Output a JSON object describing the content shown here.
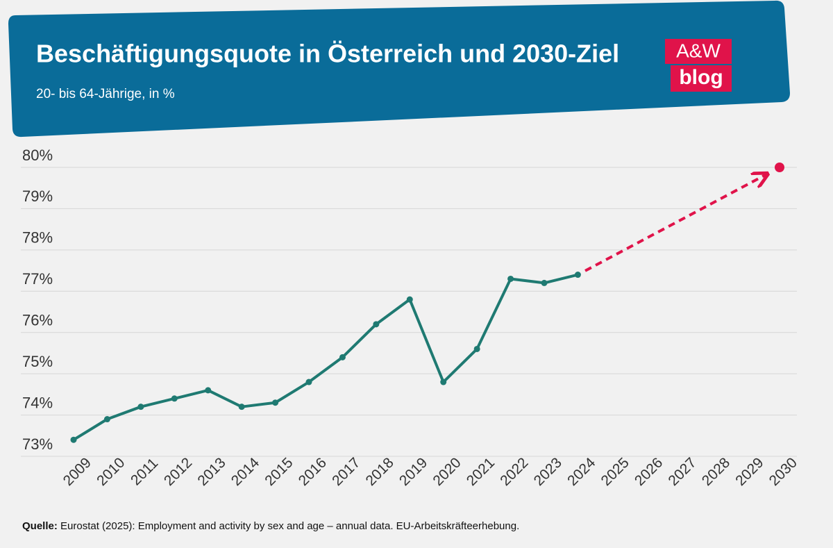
{
  "chart_data": {
    "type": "line",
    "title": "Beschäftigungsquote in Österreich und 2030-Ziel",
    "subtitle": "20- bis 64-Jährige, in %",
    "logo": [
      "A&W",
      "blog"
    ],
    "source_label": "Quelle:",
    "source": "Eurostat (2025): Employment and activity by sex and age – annual data. EU-Arbeitskräfteerhebung.",
    "categories": [
      "2009",
      "2010",
      "2011",
      "2012",
      "2013",
      "2014",
      "2015",
      "2016",
      "2017",
      "2018",
      "2019",
      "2020",
      "2021",
      "2022",
      "2023",
      "2024",
      "2025",
      "2026",
      "2027",
      "2028",
      "2029",
      "2030"
    ],
    "series": [
      {
        "color": "#1f7a72",
        "values": [
          73.4,
          73.9,
          74.2,
          74.4,
          74.6,
          74.2,
          74.3,
          74.8,
          75.4,
          76.2,
          76.8,
          74.8,
          75.6,
          77.3,
          77.2,
          77.4,
          null,
          null,
          null,
          null,
          null,
          null
        ]
      },
      {
        "color": "#e0134a",
        "dashed": true,
        "values": [
          null,
          null,
          null,
          null,
          null,
          null,
          null,
          null,
          null,
          null,
          null,
          null,
          null,
          null,
          null,
          null,
          null,
          null,
          null,
          null,
          null,
          80
        ]
      }
    ],
    "ylim": [
      73,
      80
    ],
    "yticks": [
      {
        "value": 73,
        "label": "73%"
      },
      {
        "value": 74,
        "label": "74%"
      },
      {
        "value": 75,
        "label": "75%"
      },
      {
        "value": 76,
        "label": "76%"
      },
      {
        "value": 77,
        "label": "77%"
      },
      {
        "value": 78,
        "label": "78%"
      },
      {
        "value": 79,
        "label": "79%"
      },
      {
        "value": 80,
        "label": "80%"
      }
    ],
    "grid": true
  }
}
